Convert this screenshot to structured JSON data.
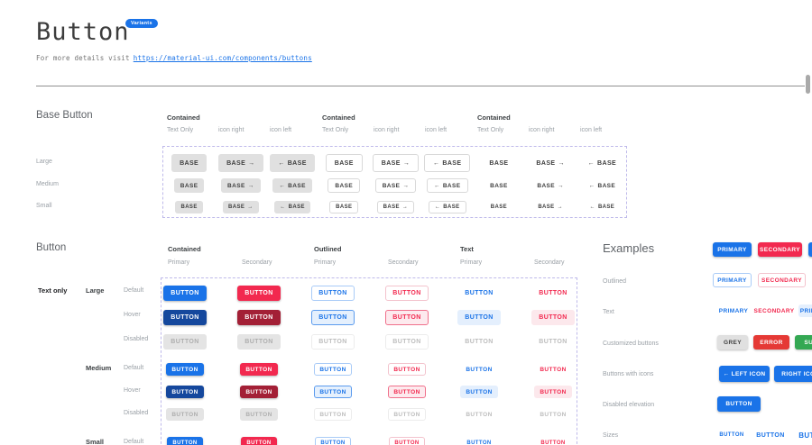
{
  "page": {
    "title": "Button",
    "badge": "Variants",
    "subtitle_prefix": "For more details visit",
    "link_text": "https://material-ui.com/components/buttons"
  },
  "colors": {
    "primary": "#1A73E8",
    "primary_hover": "#15489D",
    "secondary": "#F2294F",
    "secondary_hover": "#A32036",
    "error": "#E53935",
    "success": "#34A853",
    "grey": "#E0E0E0",
    "dashed_border": "#BEB9EA"
  },
  "base_button": {
    "heading": "Base Button",
    "sizes": [
      "Large",
      "Medium",
      "Small"
    ],
    "groups": [
      {
        "header": "Contained",
        "variant": "base-contained",
        "subcolumns": [
          "Text Only",
          "icon right",
          "icon left"
        ]
      },
      {
        "header": "Contained",
        "variant": "base-outlined",
        "subcolumns": [
          "Text Only",
          "icon right",
          "icon left"
        ]
      },
      {
        "header": "Contained",
        "variant": "base-text",
        "subcolumns": [
          "Text Only",
          "icon right",
          "icon left"
        ]
      }
    ],
    "button_label": "BASE",
    "arrow_right": "→",
    "arrow_left": "←"
  },
  "button_section": {
    "heading": "Button",
    "left_label": "Text only",
    "groups": [
      {
        "header": "Contained",
        "subcolumns": [
          "Primary",
          "Secondary"
        ]
      },
      {
        "header": "Outlined",
        "subcolumns": [
          "Primary",
          "Secondary"
        ]
      },
      {
        "header": "Text",
        "subcolumns": [
          "Primary",
          "Secondary"
        ]
      }
    ],
    "column_styles": [
      "contained-primary",
      "contained-secondary",
      "outlined-primary",
      "outlined-secondary",
      "text-primary",
      "text-secondary"
    ],
    "row_groups": [
      {
        "size": "Large",
        "states": [
          "Default",
          "Hover",
          "Disabled"
        ]
      },
      {
        "size": "Medium",
        "states": [
          "Default",
          "Hover",
          "Disabled"
        ]
      },
      {
        "size": "Small",
        "states": [
          "Default"
        ]
      }
    ],
    "button_label": "BUTTON"
  },
  "examples": {
    "heading": "Examples",
    "rows": [
      {
        "label": "",
        "buttons": [
          {
            "text": "PRIMARY",
            "style": "contained-primary"
          },
          {
            "text": "SECONDARY",
            "style": "contained-secondary"
          },
          {
            "text": "",
            "style": "contained-primary"
          }
        ]
      },
      {
        "label": "Outlined",
        "buttons": [
          {
            "text": "PRIMARY",
            "style": "outlined-primary"
          },
          {
            "text": "SECONDARY",
            "style": "outlined-secondary"
          },
          {
            "text": "",
            "style": "outlined-secondary"
          }
        ]
      },
      {
        "label": "Text",
        "buttons": [
          {
            "text": "PRIMARY",
            "style": "text-primary"
          },
          {
            "text": "SECONDARY",
            "style": "text-secondary"
          },
          {
            "text": "PRIMARY",
            "style": "text-primary-hover"
          }
        ]
      },
      {
        "label": "Customized buttons",
        "buttons": [
          {
            "text": "GREY",
            "style": "grey"
          },
          {
            "text": "ERROR",
            "style": "error"
          },
          {
            "text": "SUCCESS",
            "style": "success"
          }
        ]
      },
      {
        "label": "Buttons with icons",
        "buttons": [
          {
            "text": "← LEFT ICON",
            "style": "contained-primary"
          },
          {
            "text": "RIGHT ICON →",
            "style": "contained-primary"
          }
        ]
      },
      {
        "label": "Disabled elevation",
        "buttons": [
          {
            "text": "BUTTON",
            "style": "contained-primary"
          }
        ]
      },
      {
        "label": "Sizes",
        "buttons": [
          {
            "text": "BUTTON",
            "style": "text-primary"
          },
          {
            "text": "BUTTON",
            "style": "text-primary"
          },
          {
            "text": "BUTTON",
            "style": "text-primary"
          }
        ]
      }
    ]
  }
}
